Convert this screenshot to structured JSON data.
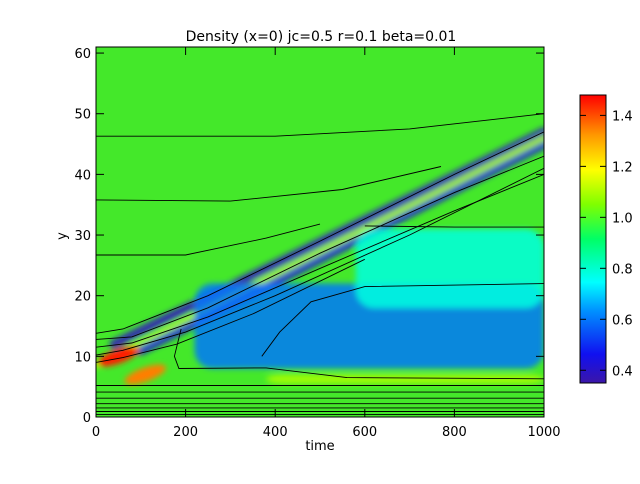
{
  "chart_data": {
    "type": "heatmap",
    "title": "Density (x=0) jc=0.5 r=0.1 beta=0.01",
    "xlabel": "time",
    "ylabel": "y",
    "xlim": [
      0,
      1000
    ],
    "ylim": [
      0,
      61
    ],
    "x_ticks": [
      0,
      200,
      400,
      600,
      800,
      1000
    ],
    "y_ticks": [
      0,
      10,
      20,
      30,
      40,
      50,
      60
    ],
    "colorbar": {
      "range": [
        0.35,
        1.48
      ],
      "ticks": [
        0.4,
        0.6,
        0.8,
        1.0,
        1.2,
        1.4
      ],
      "tick_labels": [
        "0.4",
        "0.6",
        "0.8",
        "1.0",
        "1.2",
        "1.4"
      ],
      "colormap": "rainbow"
    },
    "background_value": 0.95,
    "features": [
      {
        "feature": "low-density ridge",
        "t0": 40,
        "y0": 12,
        "t1": 1000,
        "y1": 47,
        "value": 0.38
      },
      {
        "feature": "low-density ridge",
        "t0": 100,
        "y0": 11,
        "t1": 1000,
        "y1": 45,
        "value": 0.42
      },
      {
        "feature": "high-density ridge",
        "t0": 0,
        "y0": 8.5,
        "t1": 1000,
        "y1": 46,
        "value": 1.1
      },
      {
        "feature": "high-density spot",
        "t": 50,
        "y": 10,
        "value": 1.45
      },
      {
        "feature": "high-density spot",
        "t": 110,
        "y": 7,
        "value": 1.35
      },
      {
        "feature": "low-density region",
        "t0": 220,
        "t1": 1000,
        "y0": 8,
        "y1": 22,
        "value": 0.6
      },
      {
        "feature": "low-density region",
        "t0": 580,
        "t1": 1000,
        "y0": 18,
        "y1": 31,
        "value": 0.78
      },
      {
        "feature": "high-density band",
        "t0": 380,
        "t1": 1000,
        "y0": 5.5,
        "y1": 7,
        "value": 1.1
      }
    ],
    "contours": [
      {
        "points": [
          [
            0,
            46.3
          ],
          [
            400,
            46.3
          ],
          [
            700,
            47.5
          ],
          [
            1000,
            50
          ]
        ]
      },
      {
        "points": [
          [
            0,
            35.8
          ],
          [
            300,
            35.6
          ],
          [
            550,
            37.5
          ],
          [
            770,
            41.3
          ]
        ]
      },
      {
        "points": [
          [
            0,
            26.7
          ],
          [
            200,
            26.7
          ],
          [
            380,
            29.5
          ],
          [
            500,
            31.8
          ]
        ]
      },
      {
        "points": [
          [
            0,
            13.8
          ],
          [
            60,
            14.5
          ],
          [
            250,
            20
          ],
          [
            500,
            29
          ],
          [
            800,
            40
          ],
          [
            1000,
            47
          ]
        ]
      },
      {
        "points": [
          [
            0,
            12.8
          ],
          [
            80,
            13.2
          ],
          [
            250,
            18
          ],
          [
            500,
            27
          ],
          [
            800,
            37
          ],
          [
            1000,
            43
          ]
        ]
      },
      {
        "points": [
          [
            0,
            11.5
          ],
          [
            80,
            12.2
          ],
          [
            250,
            16.5
          ],
          [
            500,
            24.5
          ],
          [
            800,
            34
          ],
          [
            1000,
            40
          ]
        ]
      },
      {
        "points": [
          [
            0,
            10.2
          ],
          [
            60,
            11
          ],
          [
            200,
            14
          ],
          [
            400,
            20
          ],
          [
            700,
            30
          ],
          [
            1000,
            41
          ]
        ]
      },
      {
        "points": [
          [
            0,
            9
          ],
          [
            60,
            9.8
          ],
          [
            180,
            12
          ],
          [
            350,
            17
          ],
          [
            600,
            26
          ]
        ]
      },
      {
        "points": [
          [
            600,
            31.5
          ],
          [
            800,
            31.3
          ],
          [
            1000,
            31.3
          ]
        ]
      },
      {
        "points": [
          [
            190,
            14.5
          ],
          [
            175,
            10
          ],
          [
            185,
            8
          ],
          [
            380,
            8.1
          ],
          [
            560,
            6.5
          ],
          [
            1000,
            6.3
          ]
        ]
      },
      {
        "points": [
          [
            370,
            10
          ],
          [
            410,
            14
          ],
          [
            480,
            19
          ],
          [
            600,
            21.5
          ],
          [
            1000,
            22
          ]
        ]
      },
      {
        "points": [
          [
            0,
            5.2
          ],
          [
            1000,
            5.2
          ]
        ]
      },
      {
        "points": [
          [
            0,
            4.1
          ],
          [
            1000,
            4.1
          ]
        ]
      },
      {
        "points": [
          [
            0,
            3.1
          ],
          [
            1000,
            3.1
          ]
        ]
      },
      {
        "points": [
          [
            0,
            2.2
          ],
          [
            1000,
            2.2
          ]
        ]
      },
      {
        "points": [
          [
            0,
            1.5
          ],
          [
            1000,
            1.5
          ]
        ]
      },
      {
        "points": [
          [
            0,
            0.9
          ],
          [
            1000,
            0.9
          ]
        ]
      },
      {
        "points": [
          [
            0,
            0.4
          ],
          [
            1000,
            0.4
          ]
        ]
      }
    ]
  }
}
